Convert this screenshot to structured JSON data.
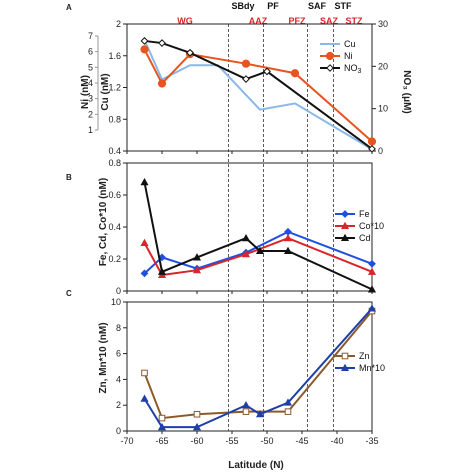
{
  "chart_data": [
    {
      "panel": "A",
      "type": "line",
      "xlabel": "",
      "x_ticks": [],
      "xlim": [
        -70,
        -35
      ],
      "left_axis": {
        "label": "Cu (nM)",
        "range": [
          0.4,
          2.0
        ],
        "ticks": [
          "0.4",
          "0.8",
          "1.2",
          "1.6",
          "2"
        ]
      },
      "outer_left_axis": {
        "label": "Ni (nM)",
        "range": [
          1,
          7
        ],
        "ticks": [
          "1",
          "2",
          "3",
          "4",
          "5",
          "6",
          "7"
        ]
      },
      "right_axis": {
        "label": "NO₃ (μM)",
        "range": [
          0,
          30
        ],
        "ticks": [
          "0",
          "10",
          "20",
          "30"
        ]
      },
      "series": [
        {
          "name": "Cu",
          "color": "#8bb8e8",
          "marker": "none",
          "axis": "left",
          "x": [
            -67.5,
            -65,
            -61,
            -57,
            -51,
            -46,
            -35
          ],
          "y": [
            1.8,
            1.3,
            1.48,
            1.48,
            0.92,
            1.0,
            0.42
          ]
        },
        {
          "name": "Ni",
          "color": "#e8541e",
          "marker": "circle",
          "axis": "left",
          "x": [
            -67.5,
            -65,
            -61,
            -53,
            -46,
            -35
          ],
          "y": [
            1.68,
            1.25,
            1.62,
            1.5,
            1.38,
            0.52
          ]
        },
        {
          "name": "NO3",
          "label_main": "NO",
          "label_sub": "3",
          "color": "#111111",
          "marker": "diamond-open",
          "axis": "right",
          "x": [
            -67.5,
            -65,
            -61,
            -53,
            -50,
            -35
          ],
          "y": [
            26.0,
            25.5,
            23.2,
            17.0,
            18.8,
            0.5
          ]
        }
      ],
      "zones": {
        "red": [
          "WG",
          "AAZ",
          "PFZ",
          "SAZ",
          "STZ"
        ],
        "black": [
          "SBdy",
          "PF",
          "SAF",
          "STF"
        ]
      }
    },
    {
      "panel": "B",
      "type": "line",
      "ylabel": "Fe, Cd, Co*10 (nM)",
      "ylim": [
        0,
        0.8
      ],
      "y_ticks": [
        "0",
        "0.2",
        "0.4",
        "0.6",
        "0.8"
      ],
      "xlim": [
        -70,
        -35
      ],
      "series": [
        {
          "name": "Fe",
          "color": "#1f4fe0",
          "marker": "diamond",
          "x": [
            -67.5,
            -65,
            -60,
            -53,
            -47,
            -35
          ],
          "y": [
            0.11,
            0.21,
            0.14,
            0.24,
            0.37,
            0.17
          ]
        },
        {
          "name": "Co*10",
          "color": "#d9262a",
          "marker": "triangle",
          "x": [
            -67.5,
            -65,
            -60,
            -53,
            -47,
            -35
          ],
          "y": [
            0.3,
            0.1,
            0.13,
            0.23,
            0.33,
            0.12
          ]
        },
        {
          "name": "Cd",
          "color": "#111111",
          "marker": "triangle",
          "x": [
            -67.5,
            -65,
            -60,
            -53,
            -51,
            -47,
            -35
          ],
          "y": [
            0.68,
            0.12,
            0.21,
            0.33,
            0.25,
            0.25,
            0.01
          ]
        }
      ]
    },
    {
      "panel": "C",
      "type": "line",
      "ylabel": "Zn, Mn*10 (nM)",
      "ylim": [
        0,
        10
      ],
      "y_ticks": [
        "0",
        "2",
        "4",
        "6",
        "8",
        "10"
      ],
      "xlabel": "Latitude (N)",
      "xlim": [
        -70,
        -35
      ],
      "x_ticks": [
        "-70",
        "-65",
        "-60",
        "-55",
        "-50",
        "-45",
        "-40",
        "-35"
      ],
      "series": [
        {
          "name": "Zn",
          "color": "#8b5a2b",
          "marker": "square-open",
          "x": [
            -67.5,
            -65,
            -60,
            -53,
            -47,
            -35
          ],
          "y": [
            4.5,
            1.0,
            1.3,
            1.5,
            1.5,
            9.3
          ]
        },
        {
          "name": "Mn*10",
          "color": "#1f3fa8",
          "marker": "triangle",
          "x": [
            -67.5,
            -65,
            -60,
            -53,
            -51,
            -47,
            -35
          ],
          "y": [
            2.5,
            0.3,
            0.3,
            2.0,
            1.3,
            2.2,
            9.5
          ]
        }
      ]
    }
  ],
  "front_latitudes": [
    -55.5,
    -50.5,
    -44.2,
    -40.5
  ],
  "panel_labels": [
    "A",
    "B",
    "C"
  ]
}
